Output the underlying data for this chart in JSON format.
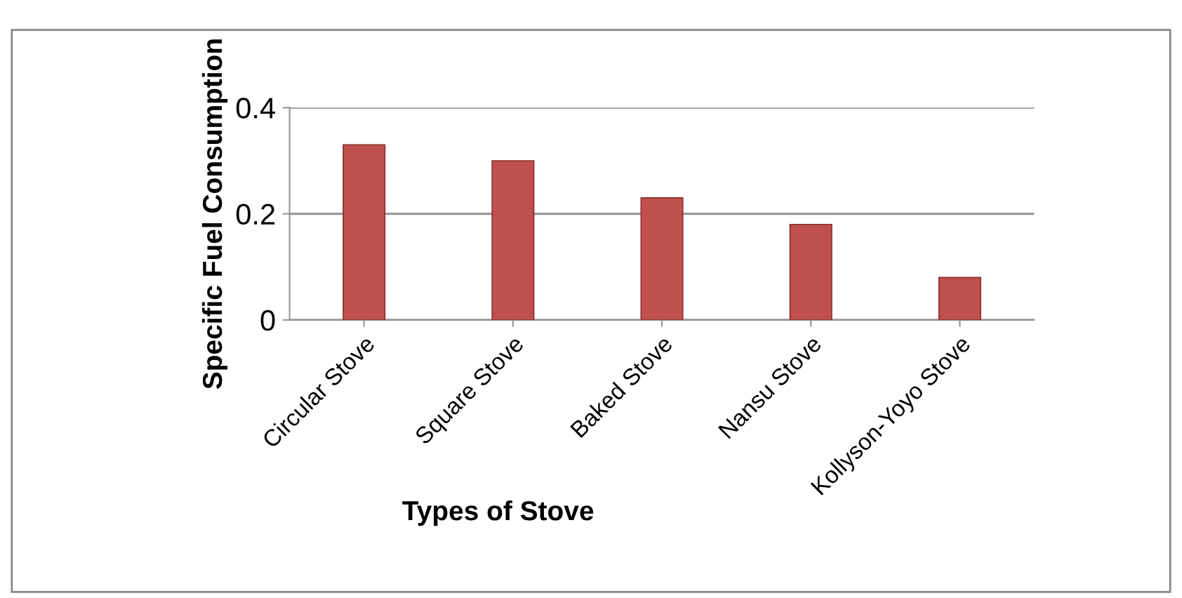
{
  "chart_data": {
    "type": "bar",
    "xlabel": "Types of Stove",
    "ylabel": "Specific Fuel Consumption",
    "categories": [
      "Circular Stove",
      "Square Stove",
      "Baked Stove",
      "Nansu Stove",
      "Kollyson-Yoyo Stove"
    ],
    "values": [
      0.33,
      0.3,
      0.23,
      0.18,
      0.08
    ],
    "color": "#c0504d",
    "ylim": [
      0,
      0.4
    ],
    "yticks": [
      0,
      0.2,
      0.4
    ],
    "grid": "y",
    "legend": false
  }
}
